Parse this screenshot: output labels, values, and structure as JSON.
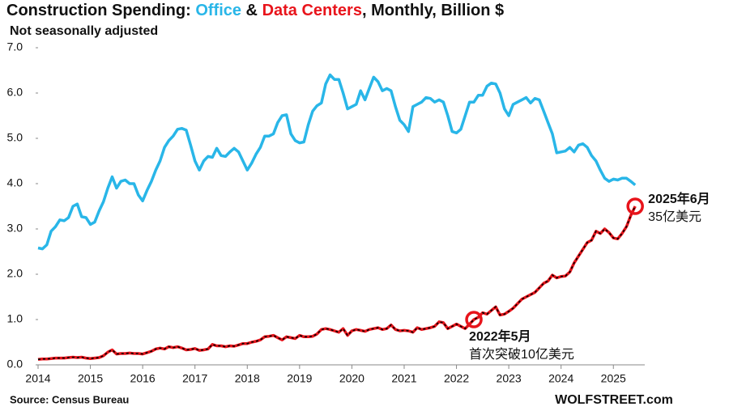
{
  "chart_data": {
    "type": "line",
    "title_parts": [
      "Construction Spending: ",
      " & ",
      ", Monthly, Billion $"
    ],
    "subtitle": "Not seasonally adjusted",
    "source": "Source: Census Bureau",
    "credit": "WOLFSTREET.com",
    "x": [
      2014,
      2014.083,
      2014.167,
      2014.25,
      2014.333,
      2014.417,
      2014.5,
      2014.583,
      2014.667,
      2014.75,
      2014.833,
      2014.917,
      2015,
      2015.083,
      2015.167,
      2015.25,
      2015.333,
      2015.417,
      2015.5,
      2015.583,
      2015.667,
      2015.75,
      2015.833,
      2015.917,
      2016,
      2016.083,
      2016.167,
      2016.25,
      2016.333,
      2016.417,
      2016.5,
      2016.583,
      2016.667,
      2016.75,
      2016.833,
      2016.917,
      2017,
      2017.083,
      2017.167,
      2017.25,
      2017.333,
      2017.417,
      2017.5,
      2017.583,
      2017.667,
      2017.75,
      2017.833,
      2017.917,
      2018,
      2018.083,
      2018.167,
      2018.25,
      2018.333,
      2018.417,
      2018.5,
      2018.583,
      2018.667,
      2018.75,
      2018.833,
      2018.917,
      2019,
      2019.083,
      2019.167,
      2019.25,
      2019.333,
      2019.417,
      2019.5,
      2019.583,
      2019.667,
      2019.75,
      2019.833,
      2019.917,
      2020,
      2020.083,
      2020.167,
      2020.25,
      2020.333,
      2020.417,
      2020.5,
      2020.583,
      2020.667,
      2020.75,
      2020.833,
      2020.917,
      2021,
      2021.083,
      2021.167,
      2021.25,
      2021.333,
      2021.417,
      2021.5,
      2021.583,
      2021.667,
      2021.75,
      2021.833,
      2021.917,
      2022,
      2022.083,
      2022.167,
      2022.25,
      2022.333,
      2022.417,
      2022.5,
      2022.583,
      2022.667,
      2022.75,
      2022.833,
      2022.917,
      2023,
      2023.083,
      2023.167,
      2023.25,
      2023.333,
      2023.417,
      2023.5,
      2023.583,
      2023.667,
      2023.75,
      2023.833,
      2023.917,
      2024,
      2024.083,
      2024.167,
      2024.25,
      2024.333,
      2024.417,
      2024.5,
      2024.583,
      2024.667,
      2024.75,
      2024.833,
      2024.917,
      2025,
      2025.083,
      2025.167,
      2025.25,
      2025.333,
      2025.417
    ],
    "series": [
      {
        "name": "Office",
        "color": "#29b6e8",
        "values": [
          2.58,
          2.56,
          2.65,
          2.95,
          3.05,
          3.2,
          3.18,
          3.25,
          3.5,
          3.55,
          3.27,
          3.25,
          3.1,
          3.15,
          3.4,
          3.6,
          3.9,
          4.15,
          3.9,
          4.05,
          4.08,
          4.0,
          4.0,
          3.75,
          3.62,
          3.85,
          4.05,
          4.3,
          4.5,
          4.8,
          4.95,
          5.05,
          5.2,
          5.22,
          5.18,
          4.85,
          4.5,
          4.3,
          4.5,
          4.6,
          4.58,
          4.78,
          4.62,
          4.6,
          4.7,
          4.78,
          4.7,
          4.5,
          4.3,
          4.45,
          4.65,
          4.8,
          5.05,
          5.05,
          5.1,
          5.35,
          5.5,
          5.52,
          5.1,
          4.95,
          4.9,
          4.92,
          5.3,
          5.6,
          5.72,
          5.78,
          6.2,
          6.4,
          6.3,
          6.3,
          6.0,
          5.65,
          5.7,
          5.75,
          6.05,
          5.85,
          6.1,
          6.35,
          6.25,
          6.05,
          6.1,
          6.05,
          5.7,
          5.4,
          5.3,
          5.15,
          5.7,
          5.75,
          5.8,
          5.9,
          5.88,
          5.8,
          5.85,
          5.8,
          5.5,
          5.15,
          5.12,
          5.2,
          5.5,
          5.8,
          5.8,
          5.95,
          5.95,
          6.15,
          6.22,
          6.2,
          6.0,
          5.65,
          5.5,
          5.75,
          5.8,
          5.85,
          5.9,
          5.78,
          5.88,
          5.85,
          5.6,
          5.35,
          5.1,
          4.68,
          4.7,
          4.72,
          4.8,
          4.7,
          4.85,
          4.88,
          4.8,
          4.62,
          4.5,
          4.3,
          4.12,
          4.05,
          4.1,
          4.08,
          4.12,
          4.12,
          4.05,
          3.97
        ]
      },
      {
        "name": "Data Centers",
        "color": "#e8141b",
        "dash_color": "#000000",
        "values": [
          0.12,
          0.13,
          0.13,
          0.14,
          0.15,
          0.15,
          0.15,
          0.16,
          0.17,
          0.16,
          0.17,
          0.15,
          0.14,
          0.15,
          0.16,
          0.2,
          0.28,
          0.33,
          0.24,
          0.25,
          0.25,
          0.26,
          0.25,
          0.25,
          0.24,
          0.27,
          0.3,
          0.35,
          0.37,
          0.35,
          0.4,
          0.38,
          0.4,
          0.37,
          0.33,
          0.34,
          0.36,
          0.32,
          0.33,
          0.35,
          0.45,
          0.42,
          0.42,
          0.4,
          0.42,
          0.41,
          0.44,
          0.47,
          0.47,
          0.5,
          0.52,
          0.55,
          0.62,
          0.63,
          0.65,
          0.6,
          0.55,
          0.62,
          0.6,
          0.58,
          0.65,
          0.62,
          0.62,
          0.63,
          0.68,
          0.78,
          0.8,
          0.78,
          0.75,
          0.72,
          0.8,
          0.65,
          0.75,
          0.78,
          0.76,
          0.74,
          0.78,
          0.8,
          0.82,
          0.78,
          0.8,
          0.88,
          0.78,
          0.75,
          0.76,
          0.75,
          0.72,
          0.82,
          0.78,
          0.8,
          0.82,
          0.85,
          0.95,
          0.93,
          0.8,
          0.85,
          0.9,
          0.85,
          0.8,
          0.9,
          1.0,
          1.05,
          1.15,
          1.12,
          1.2,
          1.28,
          1.1,
          1.12,
          1.18,
          1.25,
          1.35,
          1.45,
          1.5,
          1.55,
          1.6,
          1.7,
          1.8,
          1.85,
          1.98,
          1.92,
          1.95,
          1.96,
          2.05,
          2.25,
          2.4,
          2.55,
          2.7,
          2.75,
          2.95,
          2.9,
          3.0,
          2.92,
          2.8,
          2.78,
          2.9,
          3.05,
          3.3,
          3.5
        ]
      }
    ],
    "annotations": [
      {
        "series": 1,
        "index": 100,
        "lines": [
          "2022年5月",
          "首次突破10亿美元"
        ]
      },
      {
        "series": 1,
        "index": 137,
        "lines": [
          "2025年6月",
          "35亿美元"
        ]
      }
    ],
    "xlim": [
      2014,
      2025.6
    ],
    "xticks": [
      2014,
      2015,
      2016,
      2017,
      2018,
      2019,
      2020,
      2021,
      2022,
      2023,
      2024,
      2025
    ],
    "ylim": [
      0,
      7
    ],
    "yticks": [
      {
        "value": 0,
        "label": "0.0"
      },
      {
        "value": 1,
        "label": "1.0"
      },
      {
        "value": 2,
        "label": "2.0"
      },
      {
        "value": 3,
        "label": "3.0"
      },
      {
        "value": 4,
        "label": "4.0"
      },
      {
        "value": 5,
        "label": "5.0"
      },
      {
        "value": 6,
        "label": "6.0"
      },
      {
        "value": 7,
        "label": "7.0"
      }
    ]
  }
}
